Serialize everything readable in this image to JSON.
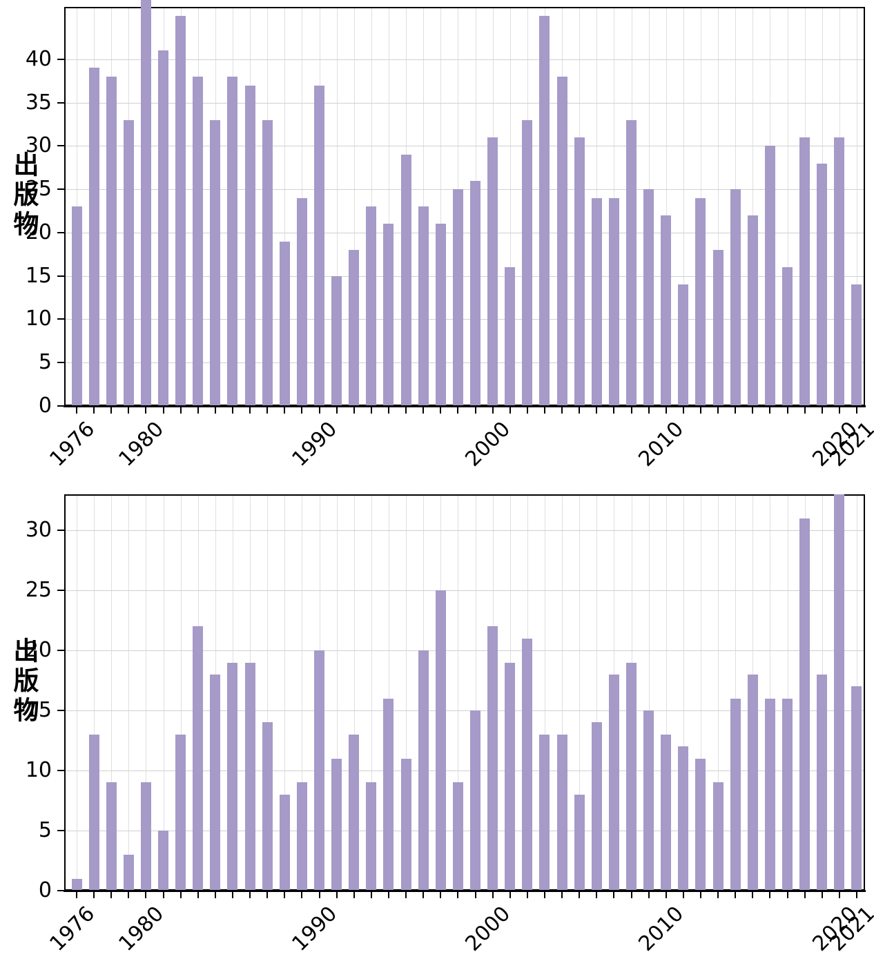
{
  "figure": {
    "description": "Two stacked bar charts of publication counts per year",
    "background": "#ffffff"
  },
  "colors": {
    "bar": "#a69ac8",
    "grid_horizontal": "#d0d0d0",
    "grid_vertical": "#dfdfdf",
    "axis": "#000000",
    "text": "#000000"
  },
  "chart_data": [
    {
      "type": "bar",
      "title": "",
      "xlabel": "",
      "ylabel": "出版物",
      "grid": true,
      "legend_position": "none",
      "ylim": [
        0,
        46
      ],
      "yticks": [
        0,
        5,
        10,
        15,
        20,
        25,
        30,
        35,
        40
      ],
      "categories": [
        1976,
        1977,
        1978,
        1979,
        1980,
        1981,
        1982,
        1983,
        1984,
        1985,
        1986,
        1987,
        1988,
        1989,
        1990,
        1991,
        1992,
        1993,
        1994,
        1995,
        1996,
        1997,
        1998,
        1999,
        2000,
        2001,
        2002,
        2003,
        2004,
        2005,
        2006,
        2007,
        2008,
        2009,
        2010,
        2011,
        2012,
        2013,
        2014,
        2015,
        2016,
        2017,
        2018,
        2019,
        2020,
        2021
      ],
      "values": [
        23,
        39,
        38,
        33,
        47,
        41,
        45,
        38,
        33,
        38,
        37,
        33,
        19,
        24,
        37,
        15,
        18,
        23,
        21,
        29,
        23,
        21,
        25,
        26,
        31,
        16,
        33,
        45,
        38,
        31,
        24,
        24,
        33,
        25,
        22,
        14,
        24,
        18,
        25,
        22,
        30,
        16,
        31,
        28,
        31,
        14
      ],
      "xtick_labels": [
        "1976",
        "1980",
        "1990",
        "2000",
        "2010",
        "2020",
        "2021"
      ],
      "xtick_label_years": [
        1976,
        1980,
        1990,
        2000,
        2010,
        2020,
        2021
      ],
      "note": "top of plot cropped at image edge; 1980 bar extends past visible top"
    },
    {
      "type": "bar",
      "title": "",
      "xlabel": "",
      "ylabel": "出版物",
      "grid": true,
      "legend_position": "none",
      "ylim": [
        0,
        33
      ],
      "yticks": [
        0,
        5,
        10,
        15,
        20,
        25,
        30
      ],
      "categories": [
        1976,
        1977,
        1978,
        1979,
        1980,
        1981,
        1982,
        1983,
        1984,
        1985,
        1986,
        1987,
        1988,
        1989,
        1990,
        1991,
        1992,
        1993,
        1994,
        1995,
        1996,
        1997,
        1998,
        1999,
        2000,
        2001,
        2002,
        2003,
        2004,
        2005,
        2006,
        2007,
        2008,
        2009,
        2010,
        2011,
        2012,
        2013,
        2014,
        2015,
        2016,
        2017,
        2018,
        2019,
        2020,
        2021
      ],
      "values": [
        1,
        13,
        9,
        3,
        9,
        5,
        13,
        22,
        18,
        19,
        19,
        14,
        8,
        9,
        20,
        11,
        13,
        9,
        16,
        11,
        20,
        25,
        9,
        15,
        22,
        19,
        21,
        13,
        13,
        8,
        14,
        18,
        19,
        15,
        13,
        12,
        11,
        9,
        16,
        18,
        16,
        16,
        31,
        18,
        33,
        17
      ],
      "xtick_labels": [
        "1976",
        "1980",
        "1990",
        "2000",
        "2010",
        "2020",
        "2021"
      ],
      "xtick_label_years": [
        1976,
        1980,
        1990,
        2000,
        2010,
        2020,
        2021
      ]
    }
  ]
}
